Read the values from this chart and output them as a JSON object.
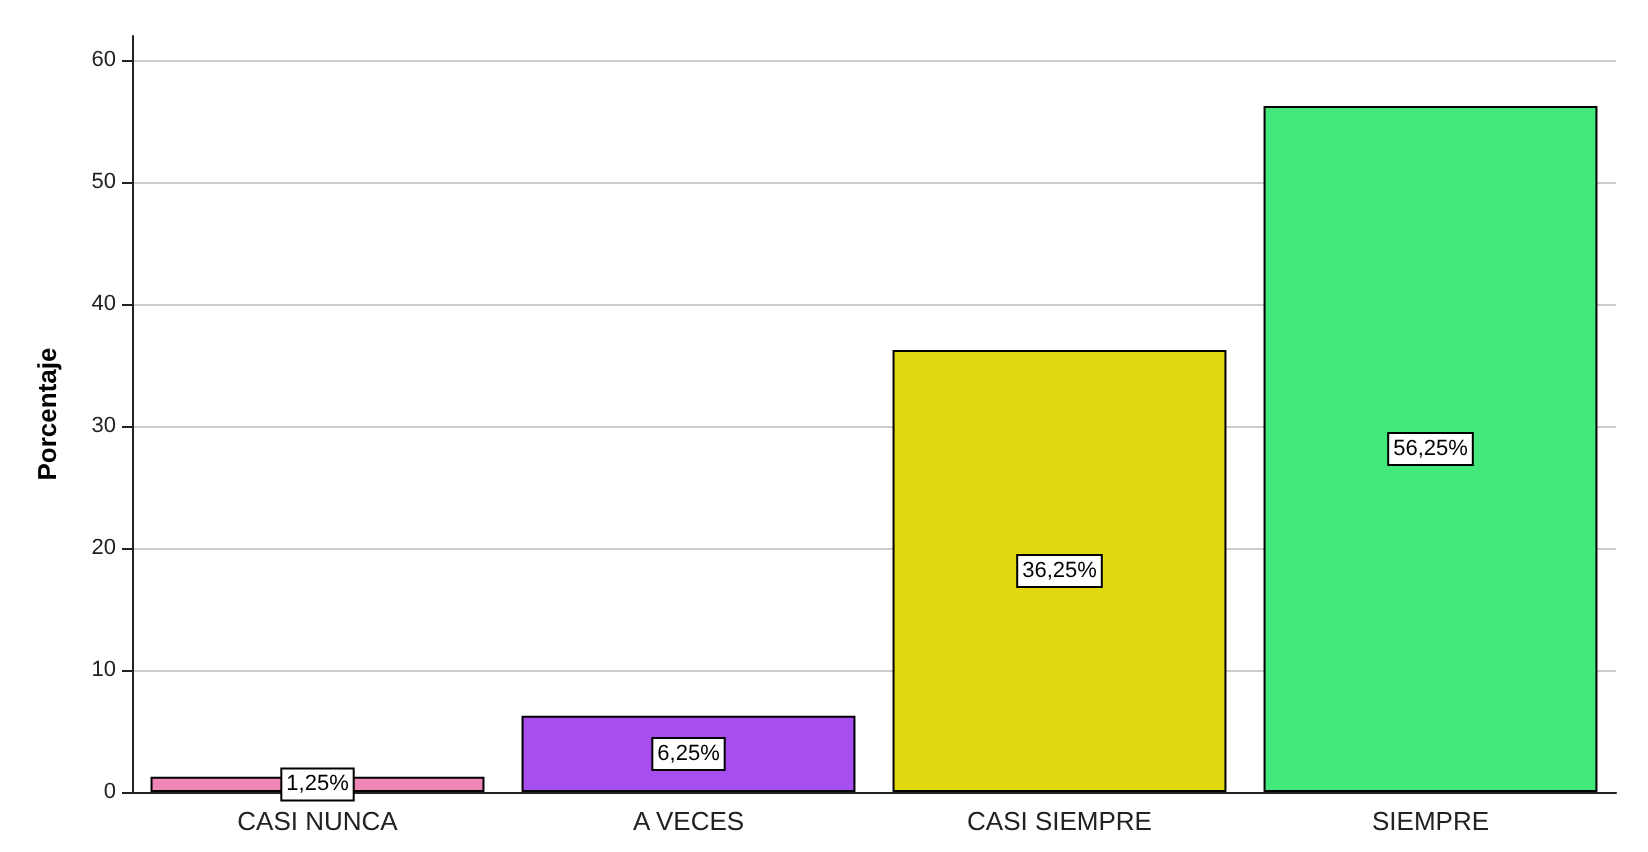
{
  "chart_data": {
    "type": "bar",
    "ylabel": "Porcentaje",
    "categories": [
      "CASI NUNCA",
      "A VECES",
      "CASI SIEMPRE",
      "SIEMPRE"
    ],
    "values": [
      1.25,
      6.25,
      36.25,
      56.25
    ],
    "colors": [
      "#ef86b5",
      "#a64ef0",
      "#e1d80f",
      "#43e87c"
    ],
    "value_labels": [
      "1,25%",
      "6,25%",
      "36,25%",
      "56,25%"
    ],
    "ylim": [
      0,
      62
    ],
    "yticks": [
      0,
      10,
      20,
      30,
      40,
      50,
      60
    ],
    "grid": "y"
  }
}
